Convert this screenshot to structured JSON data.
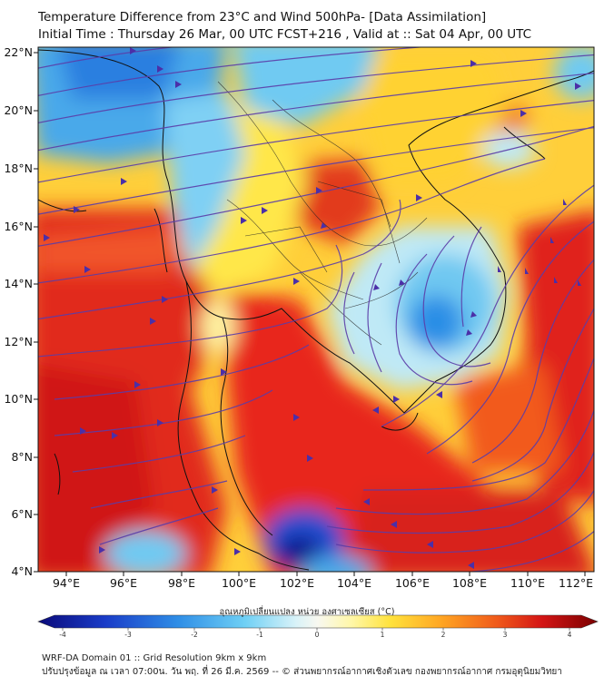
{
  "title": {
    "line1": "Temperature Difference from 23°C and Wind 500hPa- [Data Assimilation]",
    "line2": "Initial Time : Thursday 26 Mar, 00 UTC FCST+216 , Valid at ::  Sat 04 Apr, 00 UTC"
  },
  "axes": {
    "lat_labels": [
      "22°N",
      "20°N",
      "18°N",
      "16°N",
      "14°N",
      "12°N",
      "10°N",
      "8°N",
      "6°N",
      "4°N"
    ],
    "lon_labels": [
      "94°E",
      "96°E",
      "98°E",
      "100°E",
      "102°E",
      "104°E",
      "106°E",
      "108°E",
      "110°E",
      "112°E"
    ],
    "lat_range": [
      4,
      22
    ],
    "lon_range": [
      93.2,
      112.6
    ]
  },
  "colorbar": {
    "title": "อุณหภูมิเปลี่ยนแปลง หน่วย องศาเซลเซียส (°C)",
    "ticks": [
      "-4",
      "-3",
      "-2",
      "-1",
      "0",
      "1",
      "2",
      "3",
      "4"
    ],
    "range": [
      -4,
      4
    ]
  },
  "footer": {
    "line1": "WRF-DA Domain 01 :: Grid Resolution 9km x 9km",
    "line2": "ปรับปรุงข้อมูล ณ เวลา 07:00น. วัน พฤ. ที่ 26 มี.ค. 2569 -- © ส่วนพยากรณ์อากาศเชิงตัวเลข กองพยากรณ์อากาศ กรมอุตุนิยมวิทยา"
  },
  "colors": {
    "cold_deep": "#1a1aa0",
    "cold": "#3f8fe0",
    "cool": "#9fdcf5",
    "neutral": "#f6f6e6",
    "warm_light": "#fff07a",
    "warm": "#ffa623",
    "hot": "#e8251c",
    "hot_deep": "#8b0000",
    "streamline": "#5b3da8",
    "coastline": "#111111"
  }
}
